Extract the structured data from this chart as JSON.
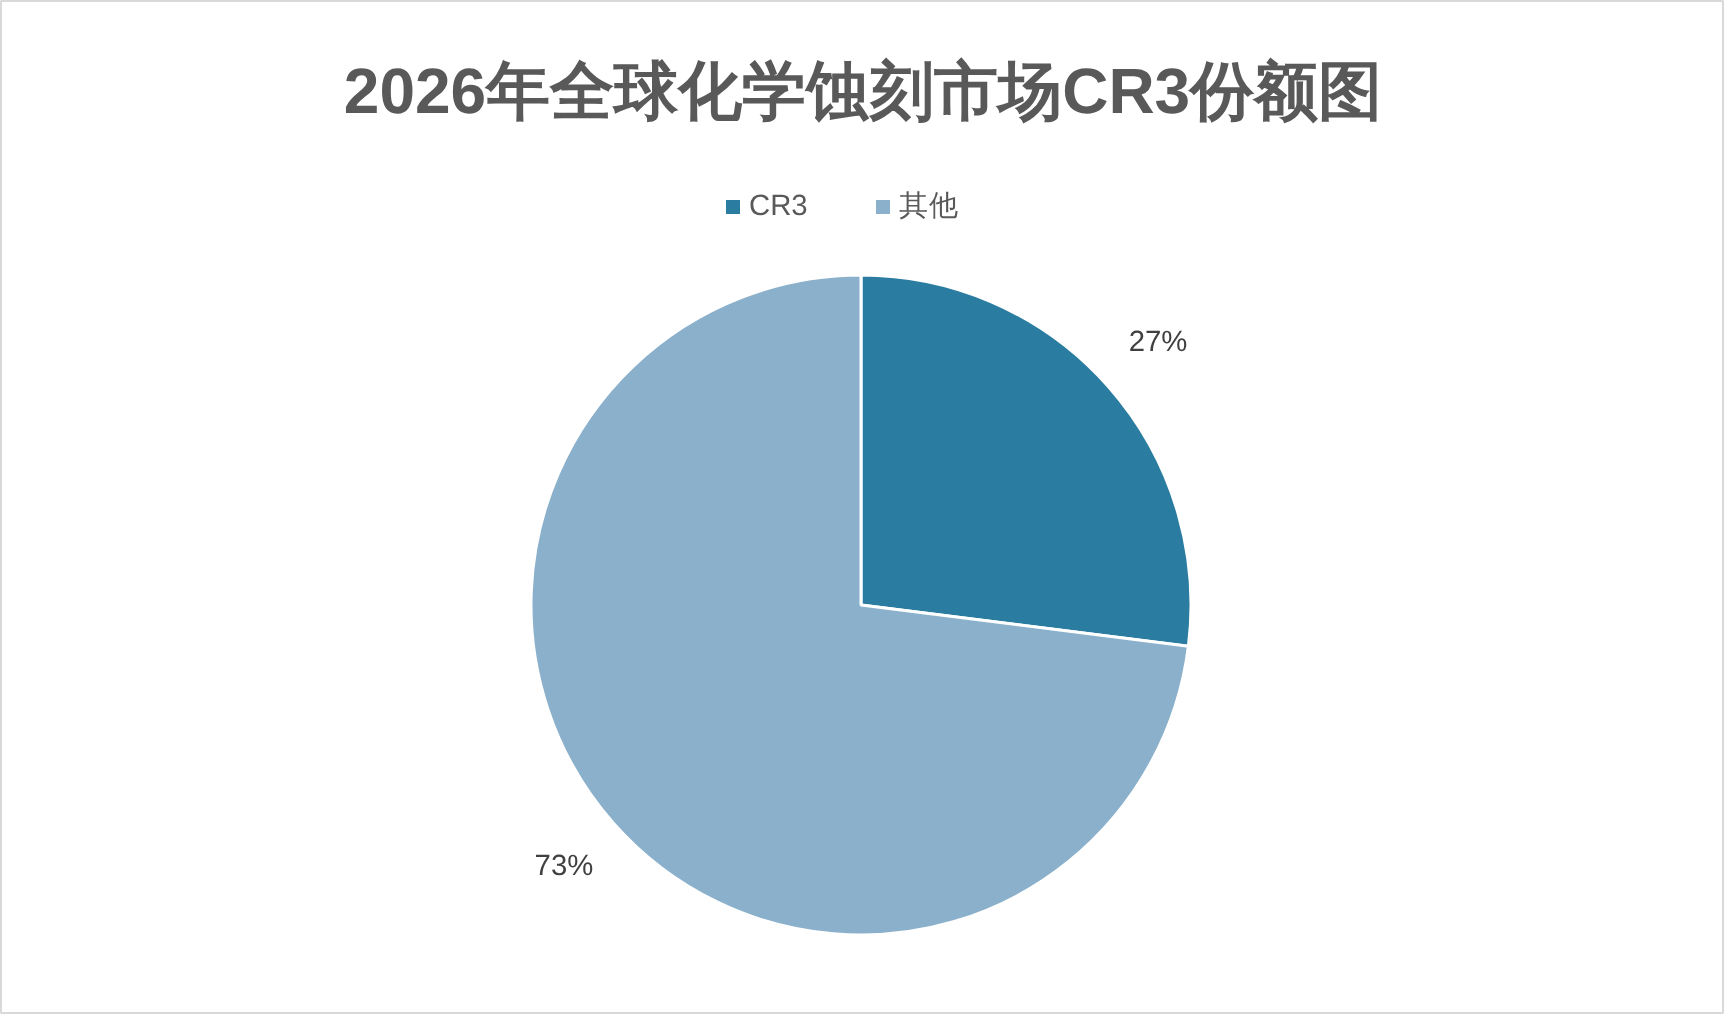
{
  "chart_data": {
    "type": "pie",
    "title": "2026年全球化学蚀刻市场CR3份额图",
    "categories": [
      "CR3",
      "其他"
    ],
    "values": [
      27,
      73
    ],
    "colors": [
      "#2a7ca1",
      "#8ab0cb"
    ],
    "value_labels": [
      "27%",
      "73%"
    ],
    "legend": "top"
  }
}
